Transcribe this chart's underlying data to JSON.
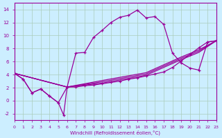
{
  "xlabel": "Windchill (Refroidissement éolien,°C)",
  "bg_color": "#cceeff",
  "line_color": "#990099",
  "grid_color": "#aaccbb",
  "xlim": [
    0,
    23
  ],
  "ylim": [
    -3,
    15
  ],
  "xticks": [
    0,
    1,
    2,
    3,
    4,
    5,
    6,
    7,
    8,
    9,
    10,
    11,
    12,
    13,
    14,
    15,
    16,
    17,
    18,
    19,
    20,
    21,
    22,
    23
  ],
  "yticks": [
    -2,
    0,
    2,
    4,
    6,
    8,
    10,
    12,
    14
  ],
  "line1_x": [
    0,
    1,
    2,
    3,
    4,
    5,
    6,
    7,
    8,
    9,
    10,
    11,
    12,
    13,
    14,
    15,
    16,
    17,
    18,
    19,
    20,
    21,
    22,
    23
  ],
  "line1_y": [
    4.2,
    3.3,
    1.2,
    1.8,
    0.7,
    -0.3,
    2.1,
    7.3,
    7.4,
    9.7,
    10.8,
    12.0,
    12.8,
    13.1,
    13.9,
    12.7,
    12.9,
    11.7,
    7.3,
    5.8,
    5.0,
    4.7,
    9.0,
    9.2
  ],
  "line2_x": [
    0,
    1,
    2,
    3,
    4,
    5,
    5.6,
    6,
    7,
    8,
    9,
    10,
    11,
    12,
    13,
    14,
    15,
    16,
    17,
    18,
    19,
    20,
    21,
    22,
    23
  ],
  "line2_y": [
    4.2,
    3.3,
    1.2,
    1.8,
    0.7,
    -0.3,
    -2.2,
    2.1,
    2.1,
    2.3,
    2.4,
    2.6,
    2.8,
    3.0,
    3.3,
    3.5,
    3.8,
    4.1,
    4.4,
    5.1,
    6.1,
    7.1,
    8.1,
    9.0,
    9.2
  ],
  "line3_x": [
    0,
    6,
    10,
    15,
    19,
    21,
    23
  ],
  "line3_y": [
    4.2,
    2.1,
    2.7,
    3.9,
    6.3,
    7.4,
    9.2
  ],
  "line4_x": [
    0,
    6,
    10,
    15,
    19,
    21,
    23
  ],
  "line4_y": [
    4.2,
    2.1,
    2.9,
    4.1,
    6.5,
    7.6,
    9.2
  ],
  "line5_x": [
    0,
    6,
    10,
    15,
    19,
    21,
    23
  ],
  "line5_y": [
    4.2,
    2.1,
    3.1,
    4.3,
    6.7,
    7.8,
    9.2
  ]
}
